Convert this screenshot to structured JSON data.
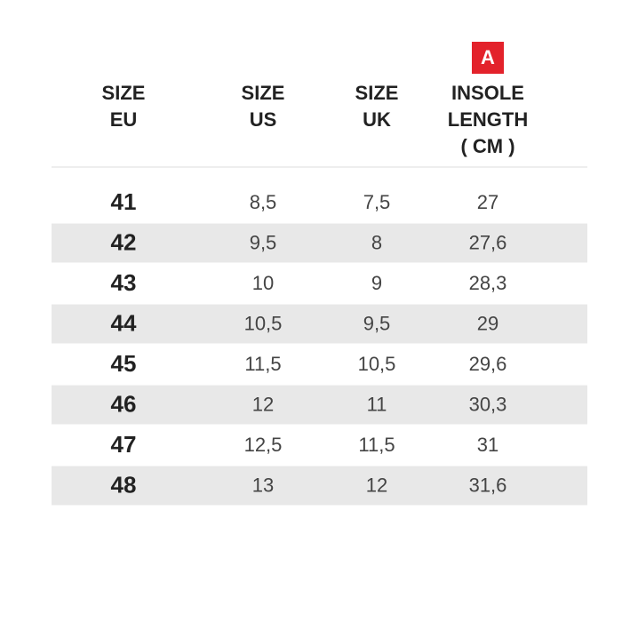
{
  "table": {
    "badge": "A",
    "columns": [
      [
        "SIZE",
        "EU"
      ],
      [
        "SIZE",
        "US"
      ],
      [
        "SIZE",
        "UK"
      ],
      [
        "INSOLE",
        "LENGTH",
        "( CM )"
      ]
    ],
    "rows": [
      [
        "41",
        "8,5",
        "7,5",
        "27"
      ],
      [
        "42",
        "9,5",
        "8",
        "27,6"
      ],
      [
        "43",
        "10",
        "9",
        "28,3"
      ],
      [
        "44",
        "10,5",
        "9,5",
        "29"
      ],
      [
        "45",
        "11,5",
        "10,5",
        "29,6"
      ],
      [
        "46",
        "12",
        "11",
        "30,3"
      ],
      [
        "47",
        "12,5",
        "11,5",
        "31"
      ],
      [
        "48",
        "13",
        "12",
        "31,6"
      ]
    ]
  }
}
